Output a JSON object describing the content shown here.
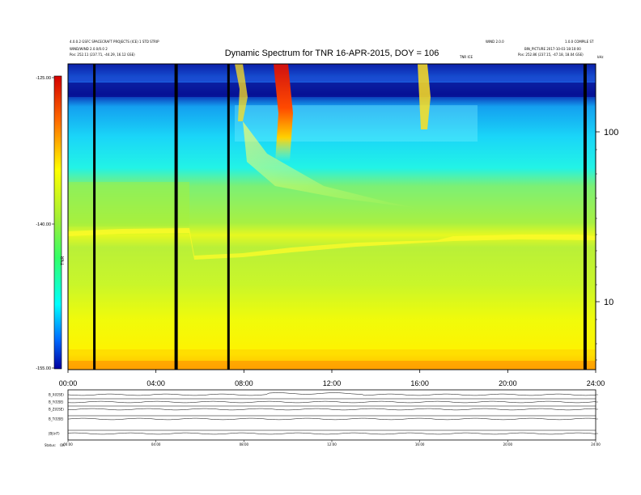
{
  "header": {
    "left_line1": "4.0.0.2 GSFC SPACECRAFT PROJECTS (ICE) 1 STD STRIP",
    "left_line2": "WIND/WIND 2.0.0/0.0 2",
    "left_line3": "Pos:   252.11 (237.71, -44.29, 16.12 GSE)",
    "right_line1": "WIND 2.0.0",
    "right_line2": "1.0.0 COMPILE ST",
    "right_line3": "BIN_PICTURE 2017-10-03 18:10:00",
    "right_line4": "Pos:   252.86 (237.15, -47.18, 18.04 GSE)",
    "center_label": "TNR ICE",
    "top_right_tag": "kHz"
  },
  "chart_data": {
    "type": "heatmap",
    "title": "Dynamic Spectrum for TNR 16-APR-2015, DOY = 106",
    "colorbar": {
      "label": "TNR",
      "ticks": [
        "-125.00",
        "-140.00",
        "-155.00"
      ],
      "range": [
        -155,
        -125
      ]
    },
    "x_ticks": [
      "00:00",
      "04:00",
      "08:00",
      "12:00",
      "16:00",
      "20:00",
      "24:00"
    ],
    "x_range_hours": [
      0,
      24
    ],
    "y_ticks": [
      "100",
      "10"
    ],
    "y_scale": "log",
    "data_gaps_hours": [
      1.2,
      4.9,
      7.3,
      23.5
    ],
    "burst_type_iii_hours": [
      9.8,
      16.4
    ]
  },
  "bottom_panels": {
    "labels": [
      "B_X(GSE)",
      "B_Y(GSE)",
      "B_Z(GSE)",
      "B_T(GSE)",
      "|B|(nT)"
    ],
    "x_ticks": [
      "00:00",
      "04:00",
      "08:00",
      "12:00",
      "16:00",
      "20:00",
      "24:00"
    ],
    "status_label": "Status:",
    "status_value": "OK"
  },
  "colors": {
    "background": "#ffffff",
    "frame": "#000000"
  }
}
